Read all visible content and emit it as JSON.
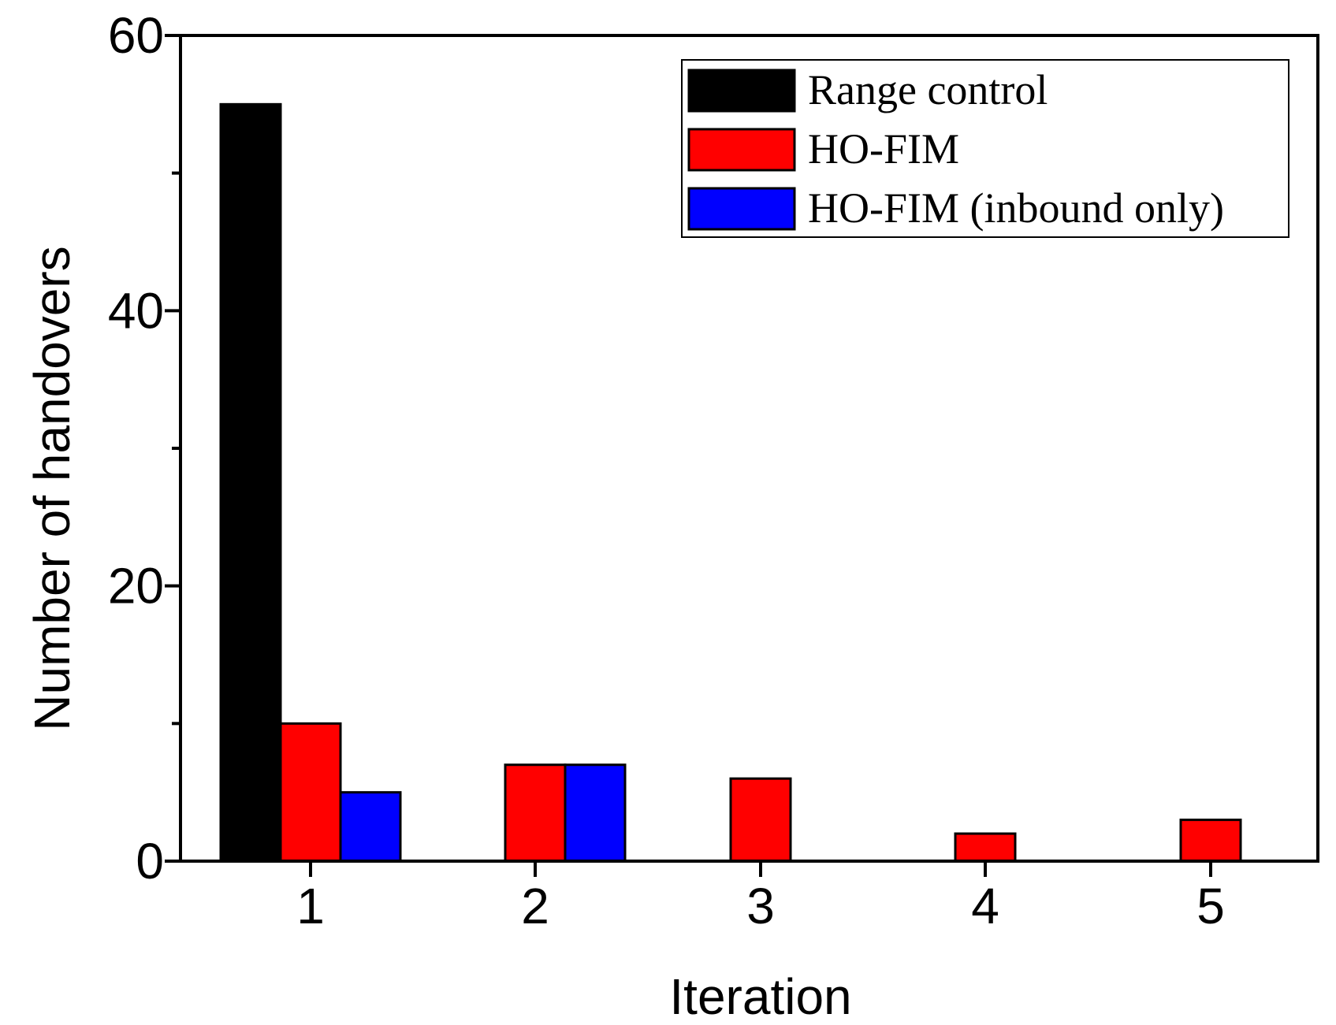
{
  "chart_data": {
    "type": "bar",
    "categories": [
      "1",
      "2",
      "3",
      "4",
      "5"
    ],
    "series": [
      {
        "name": "Range control",
        "color": "#000000",
        "values": [
          55,
          0,
          0,
          0,
          0
        ]
      },
      {
        "name": "HO-FIM",
        "color": "#ff0000",
        "values": [
          10,
          7,
          6,
          2,
          3
        ]
      },
      {
        "name": "HO-FIM (inbound only)",
        "color": "#0000ff",
        "values": [
          5,
          7,
          0,
          0,
          0
        ]
      }
    ],
    "title": "",
    "xlabel": "Iteration",
    "ylabel": "Number of handovers",
    "ylim": [
      0,
      60
    ],
    "yticks": [
      0,
      20,
      40,
      60
    ],
    "yminor_ticks": [
      10,
      30,
      50
    ],
    "legend_position": "top-right",
    "grid": false
  }
}
